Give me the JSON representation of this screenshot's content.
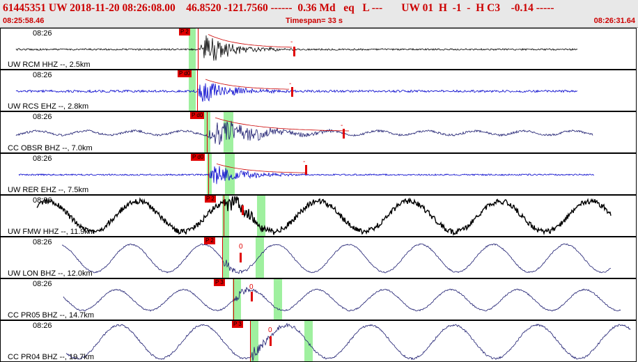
{
  "header": {
    "event_line": "61445351 UW 2018-11-20 08:26:08.00    46.8520 -121.7560 ------  0.36 Md   eq   L ---       UW 01  H  -1  -  H C3    -0.14 -----",
    "start_time": "08:25:58.46",
    "timespan": "Timespan=  33 s",
    "end_time": "08:26:31.64"
  },
  "panels": [
    {
      "time_label": "08:26",
      "station": "UW RCM HHZ --, 2.5km",
      "pick": "P 2",
      "color": "#000000",
      "coda": "-",
      "kind": "burst"
    },
    {
      "time_label": "08:26",
      "station": "UW RCS EHZ --, 2.8km",
      "pick": "P d0",
      "color": "#0000cc",
      "coda": "-",
      "kind": "burst"
    },
    {
      "time_label": "08:26",
      "station": "CC OBSR BHZ --, 7.0km",
      "pick": "P d0",
      "color": "#1a1a6e",
      "coda": "-",
      "kind": "burst"
    },
    {
      "time_label": "08:26",
      "station": "UW RER EHZ --, 7.5km",
      "pick": "P d0",
      "color": "#0000cc",
      "coda": "-",
      "kind": "burst"
    },
    {
      "time_label": "08:26",
      "station": "UW FMW HHZ --, 11.9km",
      "pick": "P 2",
      "color": "#000000",
      "coda": "",
      "kind": "wave_noisy"
    },
    {
      "time_label": "08:26",
      "station": "UW LON BHZ --, 12.0km",
      "pick": "P 2",
      "color": "#1a1a6e",
      "coda": "0",
      "kind": "wave"
    },
    {
      "time_label": "08:26",
      "station": "CC PR05 BHZ --, 14.7km",
      "pick": "P 3",
      "color": "#1a1a6e",
      "coda": "0",
      "kind": "wave"
    },
    {
      "time_label": "08:26",
      "station": "CC PR04 BHZ --, 19.7km",
      "pick": "P 3",
      "color": "#1a1a6e",
      "coda": "0",
      "kind": "wave"
    }
  ]
}
